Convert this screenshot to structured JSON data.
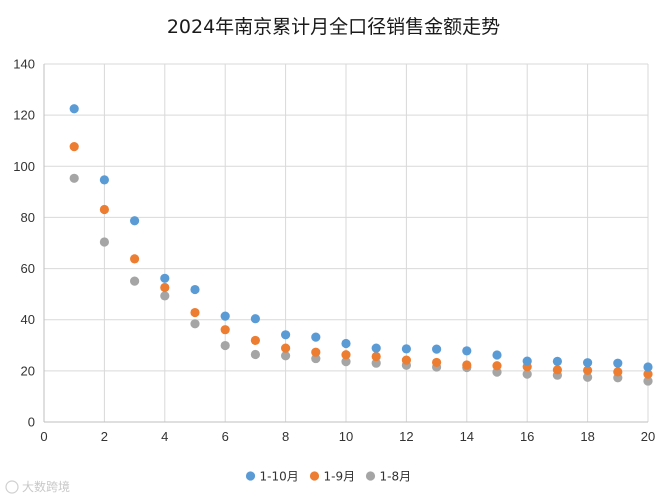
{
  "chart_data": {
    "type": "scatter",
    "title": "2024年南京累计月全口径销售金额走势",
    "xlabel": "",
    "ylabel": "",
    "xlim": [
      0,
      20
    ],
    "ylim": [
      0,
      140
    ],
    "x_ticks": [
      0,
      2,
      4,
      6,
      8,
      10,
      12,
      14,
      16,
      18,
      20
    ],
    "y_ticks": [
      0,
      20,
      40,
      60,
      80,
      100,
      120,
      140
    ],
    "grid": true,
    "legend_position": "bottom",
    "x": [
      1,
      2,
      3,
      4,
      5,
      6,
      7,
      8,
      9,
      10,
      11,
      12,
      13,
      14,
      15,
      16,
      17,
      18,
      19,
      20
    ],
    "series": [
      {
        "name": "1-10月",
        "color": "#5b9bd5",
        "values": [
          122.5,
          94.7,
          78.7,
          56.2,
          51.8,
          41.4,
          40.4,
          34.1,
          33.2,
          30.7,
          28.9,
          28.6,
          28.5,
          27.8,
          26.2,
          23.8,
          23.7,
          23.2,
          23.0,
          21.5
        ]
      },
      {
        "name": "1-9月",
        "color": "#ed7d31",
        "values": [
          107.7,
          83.1,
          63.8,
          52.6,
          42.8,
          36.1,
          31.9,
          28.9,
          27.3,
          26.3,
          25.6,
          24.2,
          23.3,
          22.3,
          22.0,
          21.6,
          20.4,
          20.2,
          19.6,
          18.7
        ]
      },
      {
        "name": "1-8月",
        "color": "#a5a5a5",
        "values": [
          95.3,
          70.4,
          55.1,
          49.3,
          38.4,
          29.9,
          26.4,
          25.9,
          24.8,
          23.6,
          23.0,
          22.2,
          21.5,
          21.3,
          19.5,
          18.7,
          18.3,
          17.5,
          17.3,
          16.0
        ]
      }
    ]
  },
  "watermark": {
    "text": "大数跨境"
  }
}
